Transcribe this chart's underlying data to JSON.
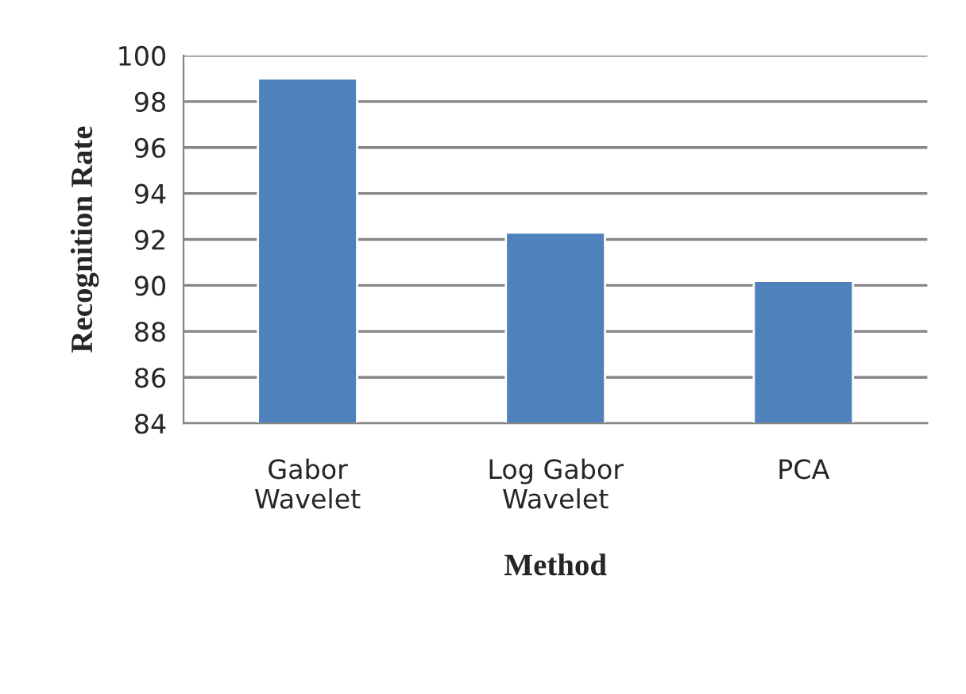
{
  "chart_data": {
    "type": "bar",
    "xlabel": "Method",
    "ylabel": "Recognition Rate",
    "categories": [
      "Gabor\nWavelet",
      "Log Gabor\nWavelet",
      "PCA"
    ],
    "values": [
      99.0,
      92.3,
      90.2
    ],
    "color": "#4f81bd",
    "ylim": [
      84,
      100
    ],
    "yticks": [
      84,
      86,
      88,
      90,
      92,
      94,
      96,
      98,
      100
    ],
    "grid": "y",
    "legend": false
  }
}
